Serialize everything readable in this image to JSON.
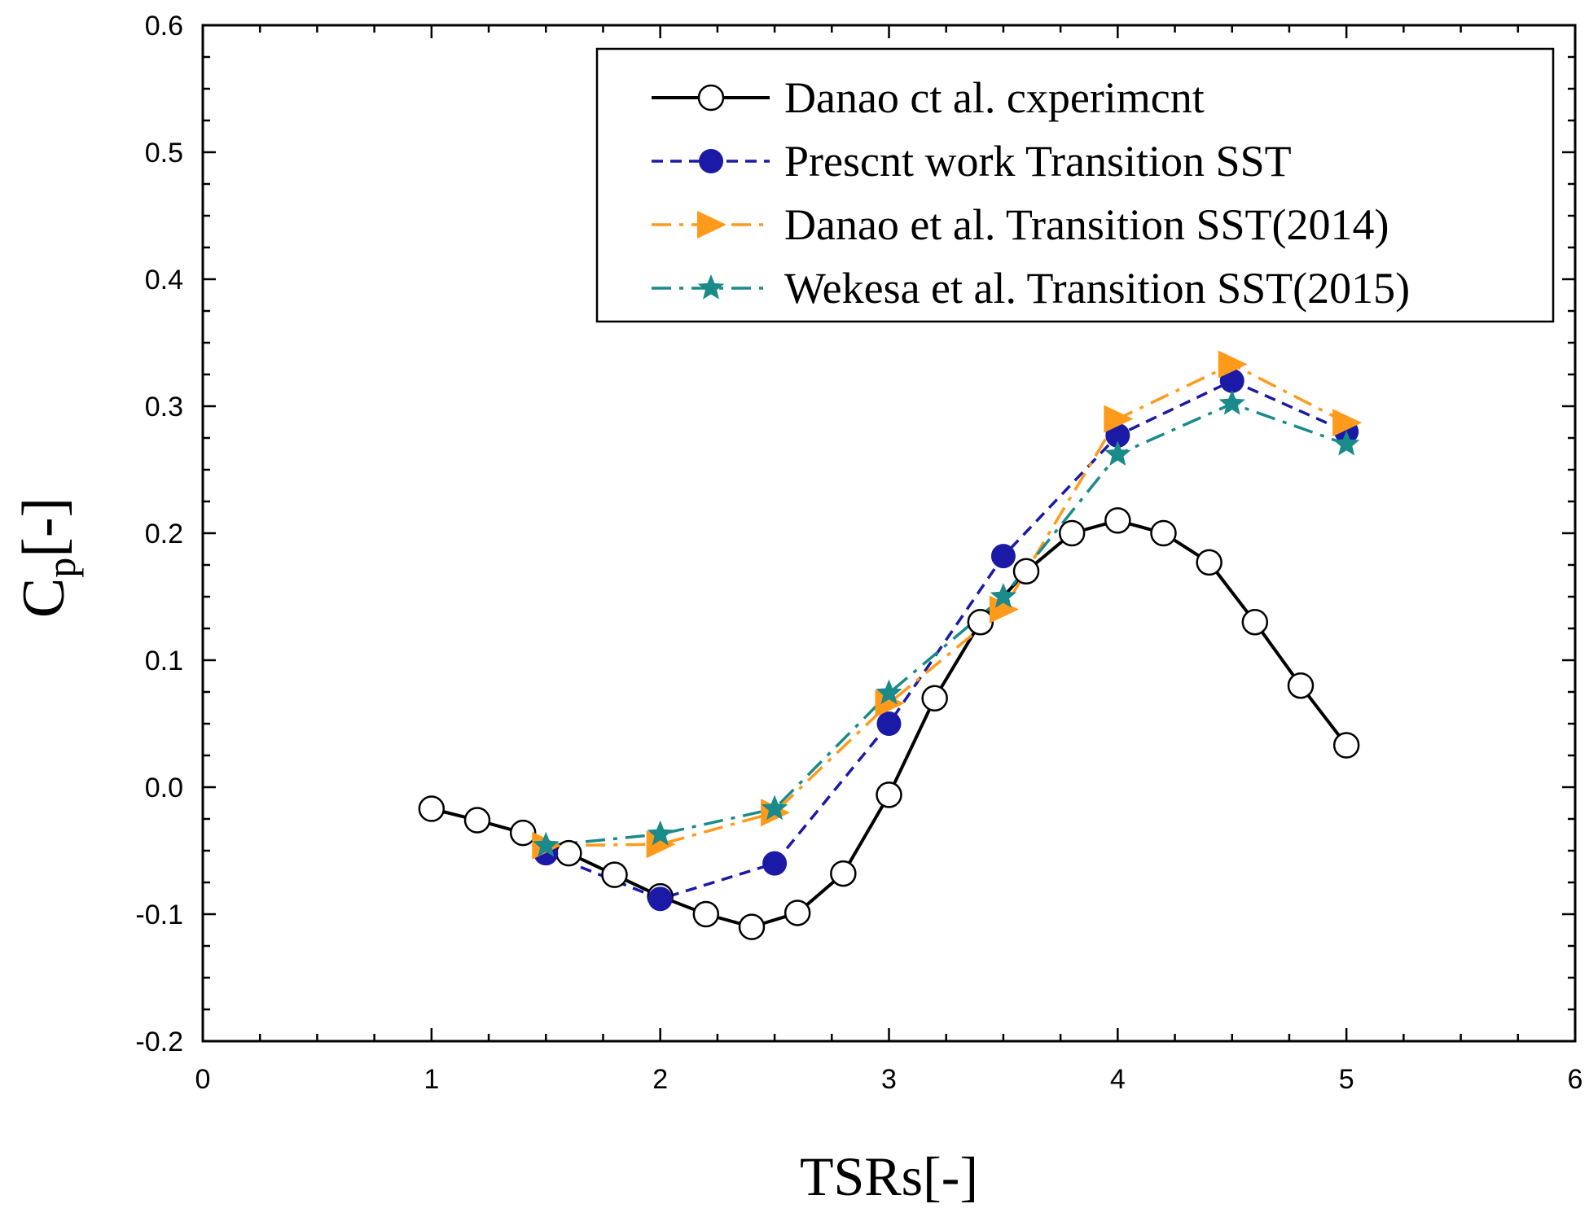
{
  "chart_data": {
    "type": "line",
    "xlabel": "TSRs[-]",
    "ylabel": {
      "main": "C",
      "sub": "p",
      "suffix": "[-]"
    },
    "xlim": [
      0,
      6
    ],
    "ylim": [
      -0.2,
      0.6
    ],
    "x_ticks": [
      "0",
      "1",
      "2",
      "3",
      "4",
      "5",
      "6"
    ],
    "y_ticks": [
      "-0.2",
      "-0.1",
      "0.0",
      "0.1",
      "0.2",
      "0.3",
      "0.4",
      "0.5",
      "0.6"
    ],
    "grid": false,
    "legend_position": "top-right",
    "series": [
      {
        "name": "Danao ct al. cxperimcnt",
        "color": "#000000",
        "line_style": "solid",
        "marker": "open-circle",
        "x": [
          1.0,
          1.2,
          1.4,
          1.6,
          1.8,
          2.0,
          2.2,
          2.4,
          2.6,
          2.8,
          3.0,
          3.2,
          3.4,
          3.6,
          3.8,
          4.0,
          4.2,
          4.4,
          4.6,
          4.8,
          5.0
        ],
        "y": [
          -0.017,
          -0.026,
          -0.036,
          -0.052,
          -0.069,
          -0.086,
          -0.1,
          -0.11,
          -0.099,
          -0.068,
          -0.006,
          0.07,
          0.13,
          0.17,
          0.2,
          0.21,
          0.2,
          0.177,
          0.13,
          0.08,
          0.033
        ]
      },
      {
        "name": "Prescnt work Transition SST",
        "color": "#1a1aa6",
        "line_style": "dashed",
        "marker": "filled-circle",
        "x": [
          1.5,
          2.0,
          2.5,
          3.0,
          3.5,
          4.0,
          4.5,
          5.0
        ],
        "y": [
          -0.052,
          -0.088,
          -0.06,
          0.05,
          0.182,
          0.277,
          0.32,
          0.28
        ]
      },
      {
        "name": "Danao et al. Transition SST(2014)",
        "color": "#ff9a1a",
        "line_style": "dash-dot",
        "marker": "filled-right-triangle",
        "x": [
          1.5,
          2.0,
          2.5,
          3.0,
          3.5,
          4.0,
          4.5,
          5.0
        ],
        "y": [
          -0.046,
          -0.045,
          -0.02,
          0.066,
          0.14,
          0.29,
          0.333,
          0.287
        ]
      },
      {
        "name": "Wekesa et al. Transition SST(2015)",
        "color": "#1a8a8a",
        "line_style": "dash-dot",
        "marker": "filled-star",
        "x": [
          1.5,
          2.0,
          2.5,
          3.0,
          3.5,
          4.0,
          4.5,
          5.0
        ],
        "y": [
          -0.046,
          -0.037,
          -0.017,
          0.074,
          0.15,
          0.262,
          0.302,
          0.27
        ]
      }
    ]
  }
}
